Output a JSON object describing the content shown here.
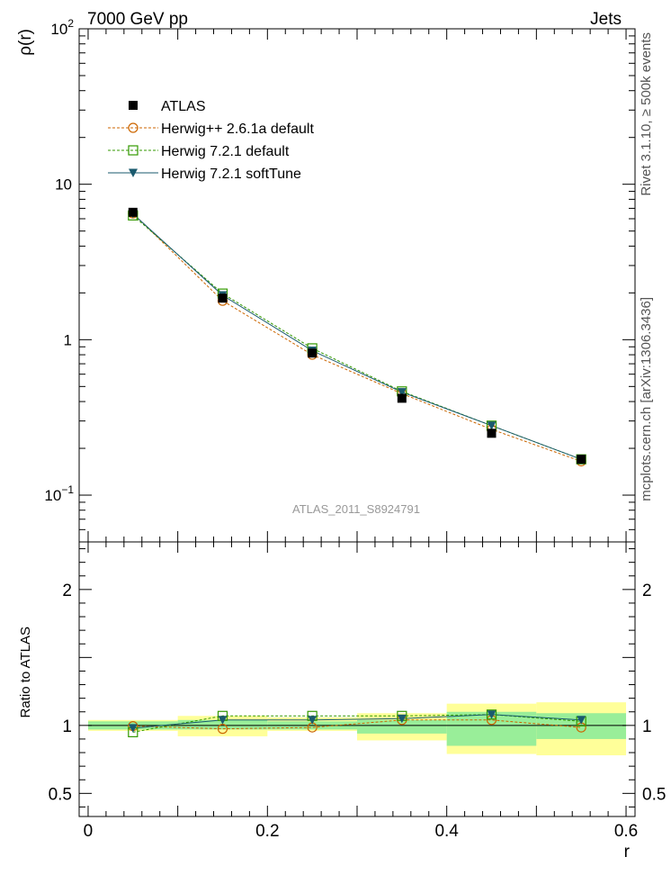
{
  "header": {
    "left": "7000 GeV pp",
    "right": "Jets",
    "side_top": "Rivet 3.1.10, ≥ 500k events",
    "side_bottom": "mcplots.cern.ch [arXiv:1306.3436]",
    "analysis": "ATLAS_2011_S8924791"
  },
  "colors": {
    "atlas": "#000000",
    "herwigpp": "#cc6600",
    "h721default": "#339900",
    "h721soft": "#1a5a6e",
    "band_outer": "#ffff99",
    "band_inner": "#99ee99"
  },
  "chart_data": [
    {
      "type": "scatter",
      "name": "main",
      "xlabel": "",
      "ylabel": "ρ(r)",
      "yscale": "log",
      "xlim": [
        -0.01,
        0.61
      ],
      "ylim": [
        0.05,
        100
      ],
      "yticks": [
        {
          "value": 0.1,
          "base": "10",
          "exp": "−1"
        },
        {
          "value": 1,
          "label": "1"
        },
        {
          "value": 10,
          "label": "10"
        },
        {
          "value": 100,
          "base": "10",
          "exp": "2"
        }
      ],
      "x": [
        0.05,
        0.15,
        0.25,
        0.35,
        0.45,
        0.55
      ],
      "legend_position": "top-left",
      "series": [
        {
          "name": "ATLAS",
          "marker": "square-filled",
          "values": [
            6.6,
            1.85,
            0.82,
            0.42,
            0.25,
            0.17
          ]
        },
        {
          "name": "Herwig++ 2.6.1a default",
          "marker": "circle-open",
          "line": "dashed",
          "values": [
            6.5,
            1.78,
            0.8,
            0.45,
            0.265,
            0.165
          ]
        },
        {
          "name": "Herwig 7.2.1 default",
          "marker": "square-open",
          "line": "dashed",
          "values": [
            6.3,
            1.98,
            0.88,
            0.465,
            0.28,
            0.17
          ]
        },
        {
          "name": "Herwig 7.2.1 softTune",
          "marker": "triangle-down",
          "line": "solid",
          "values": [
            6.45,
            1.93,
            0.85,
            0.46,
            0.28,
            0.17
          ]
        }
      ]
    },
    {
      "type": "scatter",
      "name": "ratio",
      "xlabel": "r",
      "ylabel": "Ratio to ATLAS",
      "xlim": [
        -0.01,
        0.61
      ],
      "ylim": [
        0.33,
        2.35
      ],
      "xticks": [
        {
          "value": 0,
          "label": "0"
        },
        {
          "value": 0.2,
          "label": "0.2"
        },
        {
          "value": 0.4,
          "label": "0.4"
        },
        {
          "value": 0.6,
          "label": "0.6"
        }
      ],
      "yticks": [
        {
          "value": 0.5,
          "label": "0.5"
        },
        {
          "value": 1,
          "label": "1"
        },
        {
          "value": 2,
          "label": "2"
        }
      ],
      "x": [
        0.05,
        0.15,
        0.25,
        0.35,
        0.45,
        0.55
      ],
      "bins": [
        [
          0.0,
          0.1
        ],
        [
          0.1,
          0.2
        ],
        [
          0.2,
          0.3
        ],
        [
          0.3,
          0.4
        ],
        [
          0.4,
          0.5
        ],
        [
          0.5,
          0.6
        ]
      ],
      "band_outer": [
        [
          0.96,
          1.04
        ],
        [
          0.92,
          1.07
        ],
        [
          0.96,
          1.06
        ],
        [
          0.89,
          1.09
        ],
        [
          0.79,
          1.16
        ],
        [
          0.78,
          1.17
        ]
      ],
      "band_inner": [
        [
          0.97,
          1.03
        ],
        [
          0.97,
          1.04
        ],
        [
          0.97,
          1.03
        ],
        [
          0.94,
          1.04
        ],
        [
          0.85,
          1.1
        ],
        [
          0.9,
          1.09
        ]
      ],
      "series": [
        {
          "name": "Herwig++ 2.6.1a default",
          "marker": "circle-open",
          "line": "dashed",
          "values": [
            0.995,
            0.975,
            0.985,
            1.04,
            1.04,
            0.985
          ]
        },
        {
          "name": "Herwig 7.2.1 default",
          "marker": "square-open",
          "line": "dashed",
          "values": [
            0.95,
            1.07,
            1.07,
            1.07,
            1.08,
            1.03
          ]
        },
        {
          "name": "Herwig 7.2.1 softTune",
          "marker": "triangle-down",
          "line": "solid",
          "values": [
            0.98,
            1.04,
            1.04,
            1.05,
            1.08,
            1.04
          ]
        }
      ]
    }
  ]
}
